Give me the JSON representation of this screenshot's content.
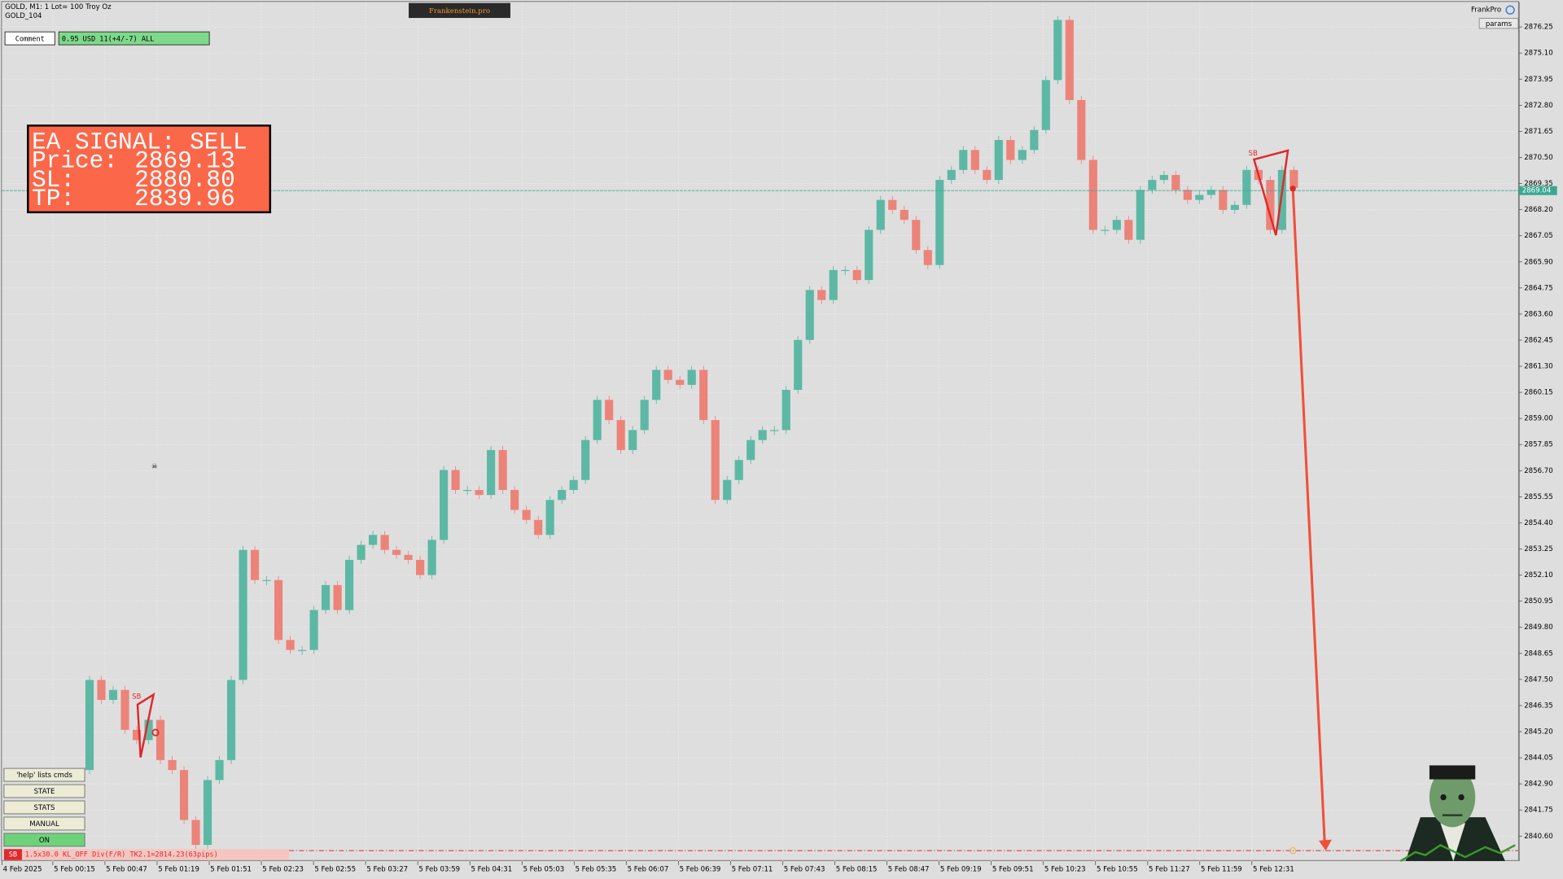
{
  "header": {
    "symbol": "GOLD, M1:  1 Lot= 100 Troy Oz",
    "account": "GOLD_104",
    "brand": "Frankenstein.pro",
    "user": "FrankPro",
    "params": "params"
  },
  "comment": {
    "label": "Comment",
    "value": "0.95 USD 11(+4/-7) ALL"
  },
  "signal": {
    "title": "EA SIGNAL: SELL",
    "rows": [
      {
        "label": "Price:",
        "value": 2869.13
      },
      {
        "label": "SL:",
        "value": {
          "value": 2880.8,
          "label": "2880.80"
        }
      },
      {
        "label": "TP:",
        "value": 2839.96
      }
    ]
  },
  "buttons": [
    "'help' lists cmds",
    "STATE",
    "STATS",
    "MANUAL",
    "ON"
  ],
  "status": {
    "tag": "SB",
    "text": "1.5x30.0 KL_OFF Div(F/R) TK2.1=2814.23(63pips)"
  },
  "chart": {
    "pattern_label": "SB",
    "ylim": [
      2839.5,
      2877.35
    ],
    "yticks": [
      2876.25,
      {
        "value": 2875.1,
        "label": "2875.10"
      },
      2873.95,
      {
        "value": 2872.8,
        "label": "2872.80"
      },
      2871.65,
      {
        "value": 2870.5,
        "label": "2870.50"
      },
      2869.35,
      {
        "value": 2868.2,
        "label": "2868.20"
      },
      2867.05,
      {
        "value": 2865.9,
        "label": "2865.90"
      },
      2864.75,
      {
        "value": 2863.6,
        "label": "2863.60"
      },
      2862.45,
      {
        "value": 2861.3,
        "label": "2861.30"
      },
      2860.15,
      {
        "value": 2859,
        "label": "2859.00"
      },
      2857.85,
      {
        "value": 2856.7,
        "label": "2856.70"
      },
      2855.55,
      {
        "value": 2854.4,
        "label": "2854.40"
      },
      2853.25,
      {
        "value": 2852.1,
        "label": "2852.10"
      },
      2850.95,
      {
        "value": 2849.8,
        "label": "2849.80"
      },
      2848.65,
      {
        "value": 2847.5,
        "label": "2847.50"
      },
      2846.35,
      {
        "value": 2845.2,
        "label": "2845.20"
      },
      2844.05,
      {
        "value": 2842.9,
        "label": "2842.90"
      },
      2841.75,
      {
        "value": 2840.6,
        "label": "2840.60"
      }
    ],
    "time_labels": [
      "4 Feb 2025",
      "5 Feb 00:15",
      "5 Feb 00:47",
      "5 Feb 01:19",
      "5 Feb 01:51",
      "5 Feb 02:23",
      "5 Feb 02:55",
      "5 Feb 03:27",
      "5 Feb 03:59",
      "5 Feb 04:31",
      "5 Feb 05:03",
      "5 Feb 05:35",
      "5 Feb 06:07",
      "5 Feb 06:39",
      "5 Feb 07:11",
      "5 Feb 07:43",
      "5 Feb 08:15",
      "5 Feb 08:47",
      "5 Feb 09:19",
      "5 Feb 09:51",
      "5 Feb 10:23",
      "5 Feb 10:55",
      "5 Feb 11:27",
      "5 Feb 11:59",
      "5 Feb 12:31"
    ],
    "current_price": 2869.04,
    "closes": [
      2843.51,
      2847.48,
      2846.6,
      2847.04,
      2845.28,
      2844.83,
      2845.72,
      2843.95,
      2843.51,
      2841.31,
      2840.21,
      2843.07,
      2843.95,
      2847.48,
      2853.21,
      2851.88,
      2851.88,
      2849.24,
      2848.8,
      2848.8,
      2850.56,
      2851.66,
      2850.56,
      2852.77,
      2853.43,
      2853.87,
      2853.21,
      2852.99,
      2852.77,
      2852.1,
      2853.65,
      2856.73,
      2855.85,
      2855.85,
      2855.63,
      2857.61,
      2855.85,
      2854.97,
      2854.53,
      2853.87,
      2855.41,
      2855.85,
      2856.29,
      2858.05,
      2859.82,
      2858.93,
      2857.61,
      2858.49,
      2859.82,
      2861.14,
      2860.7,
      2860.48,
      2861.14,
      2858.93,
      2855.41,
      2856.29,
      2857.17,
      2858.05,
      2858.49,
      2858.49,
      2860.26,
      2862.46,
      2864.66,
      2864.22,
      2865.54,
      2865.54,
      2865.1,
      2867.31,
      2868.63,
      2868.19,
      2867.75,
      2866.42,
      2865.76,
      2869.51,
      2869.95,
      2870.83,
      2869.95,
      2869.51,
      2871.27,
      2870.39,
      2870.83,
      2871.71,
      2873.91,
      2876.56,
      2873.03,
      2870.39,
      2867.31,
      2867.31,
      2867.75,
      2866.87,
      2869.07,
      2869.51,
      2869.73,
      2869.07,
      2868.63,
      2868.85,
      2869.07,
      2868.19,
      2868.41,
      2869.95,
      2869.51,
      2867.31,
      2869.95,
      2869.16
    ]
  }
}
